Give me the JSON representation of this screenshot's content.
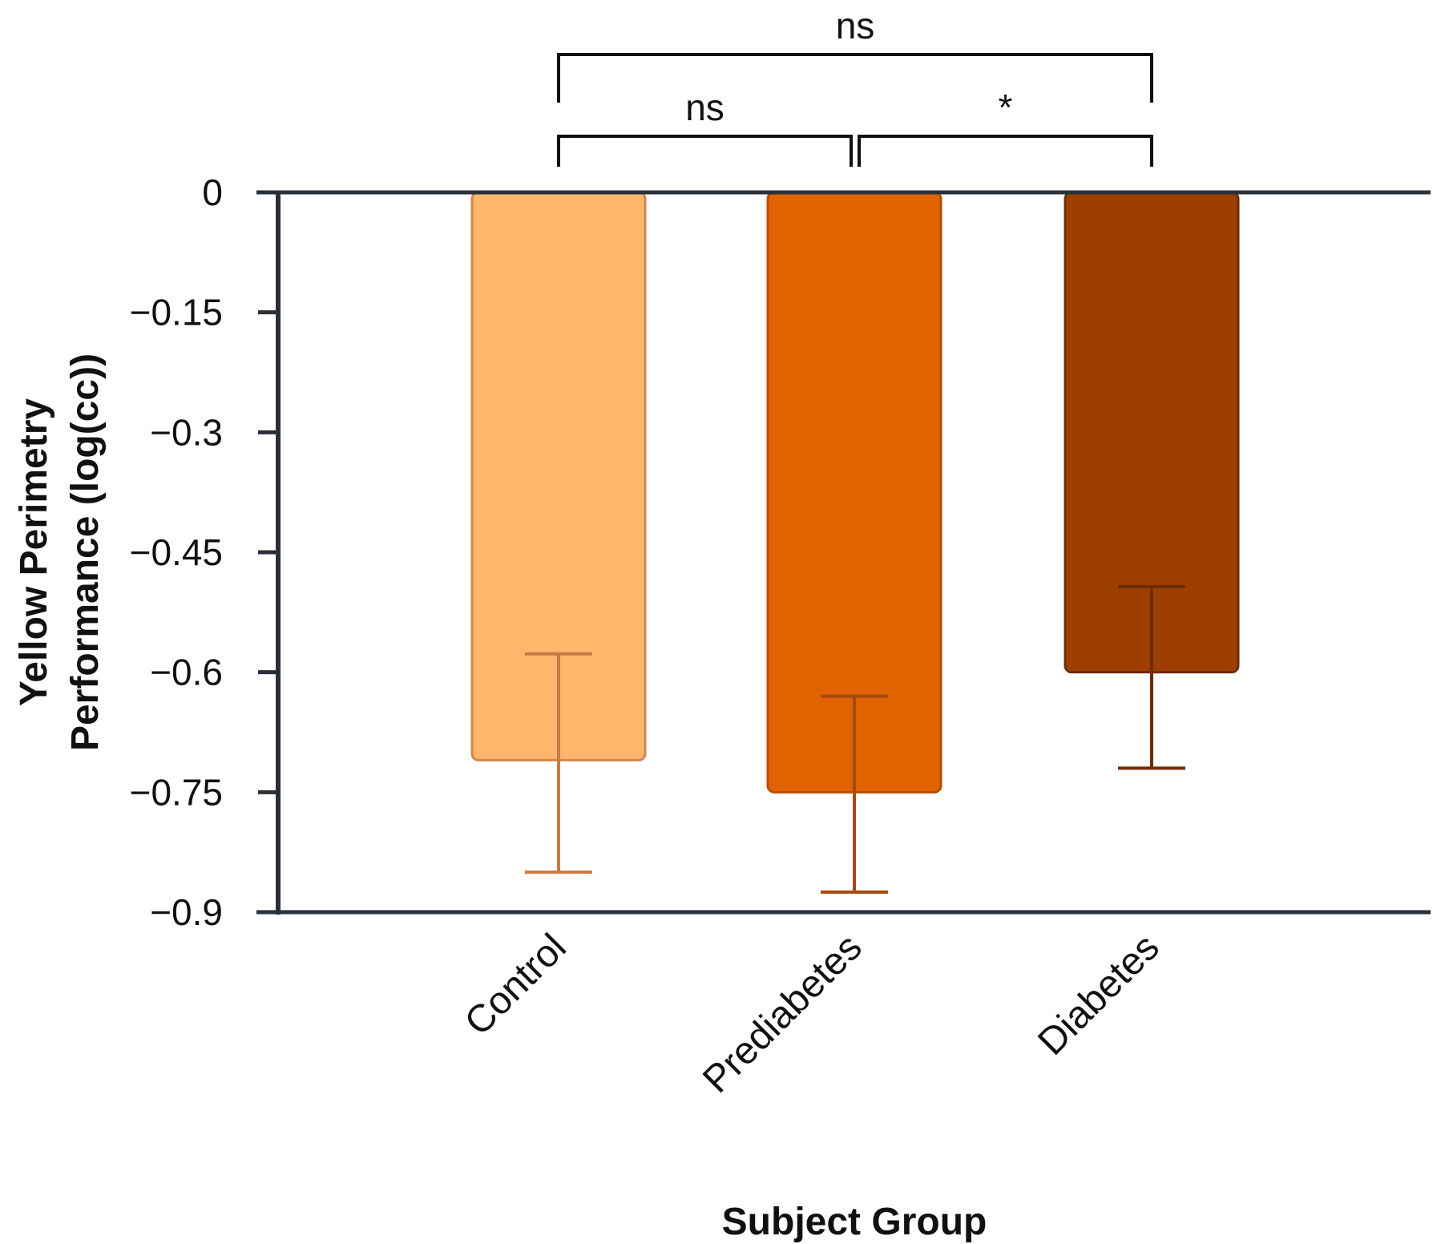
{
  "chart_data": {
    "type": "bar",
    "categories": [
      "Control",
      "Prediabetes",
      "Diabetes"
    ],
    "values": [
      -0.71,
      -0.75,
      -0.6
    ],
    "error_low": [
      -0.85,
      -0.875,
      -0.72
    ],
    "error_high": [
      -0.577,
      -0.63,
      -0.493
    ],
    "bar_colors": [
      "#FDB66B",
      "#E06300",
      "#9C3F00"
    ],
    "bar_edge_colors": [
      "#D2864A",
      "#B84E00",
      "#6E2C00"
    ],
    "error_colors": [
      "#C97B43",
      "#A84A10",
      "#6E2C00"
    ],
    "ylabel_lines": [
      "Yellow Perimetry",
      "Performance (log(cc))"
    ],
    "xlabel": "Subject Group",
    "ylim": [
      -0.9,
      0
    ],
    "yticks": [
      0,
      -0.15,
      -0.3,
      -0.45,
      -0.6,
      -0.75,
      -0.9
    ],
    "ytick_labels": [
      "0",
      "−0.15",
      "−0.3",
      "−0.45",
      "−0.6",
      "−0.75",
      "−0.9"
    ],
    "significance": [
      {
        "from": 0,
        "to": 2,
        "label": "ns",
        "level": 2
      },
      {
        "from": 0,
        "to": 1,
        "label": "ns",
        "level": 1
      },
      {
        "from": 1,
        "to": 2,
        "label": "*",
        "level": 1
      }
    ]
  }
}
